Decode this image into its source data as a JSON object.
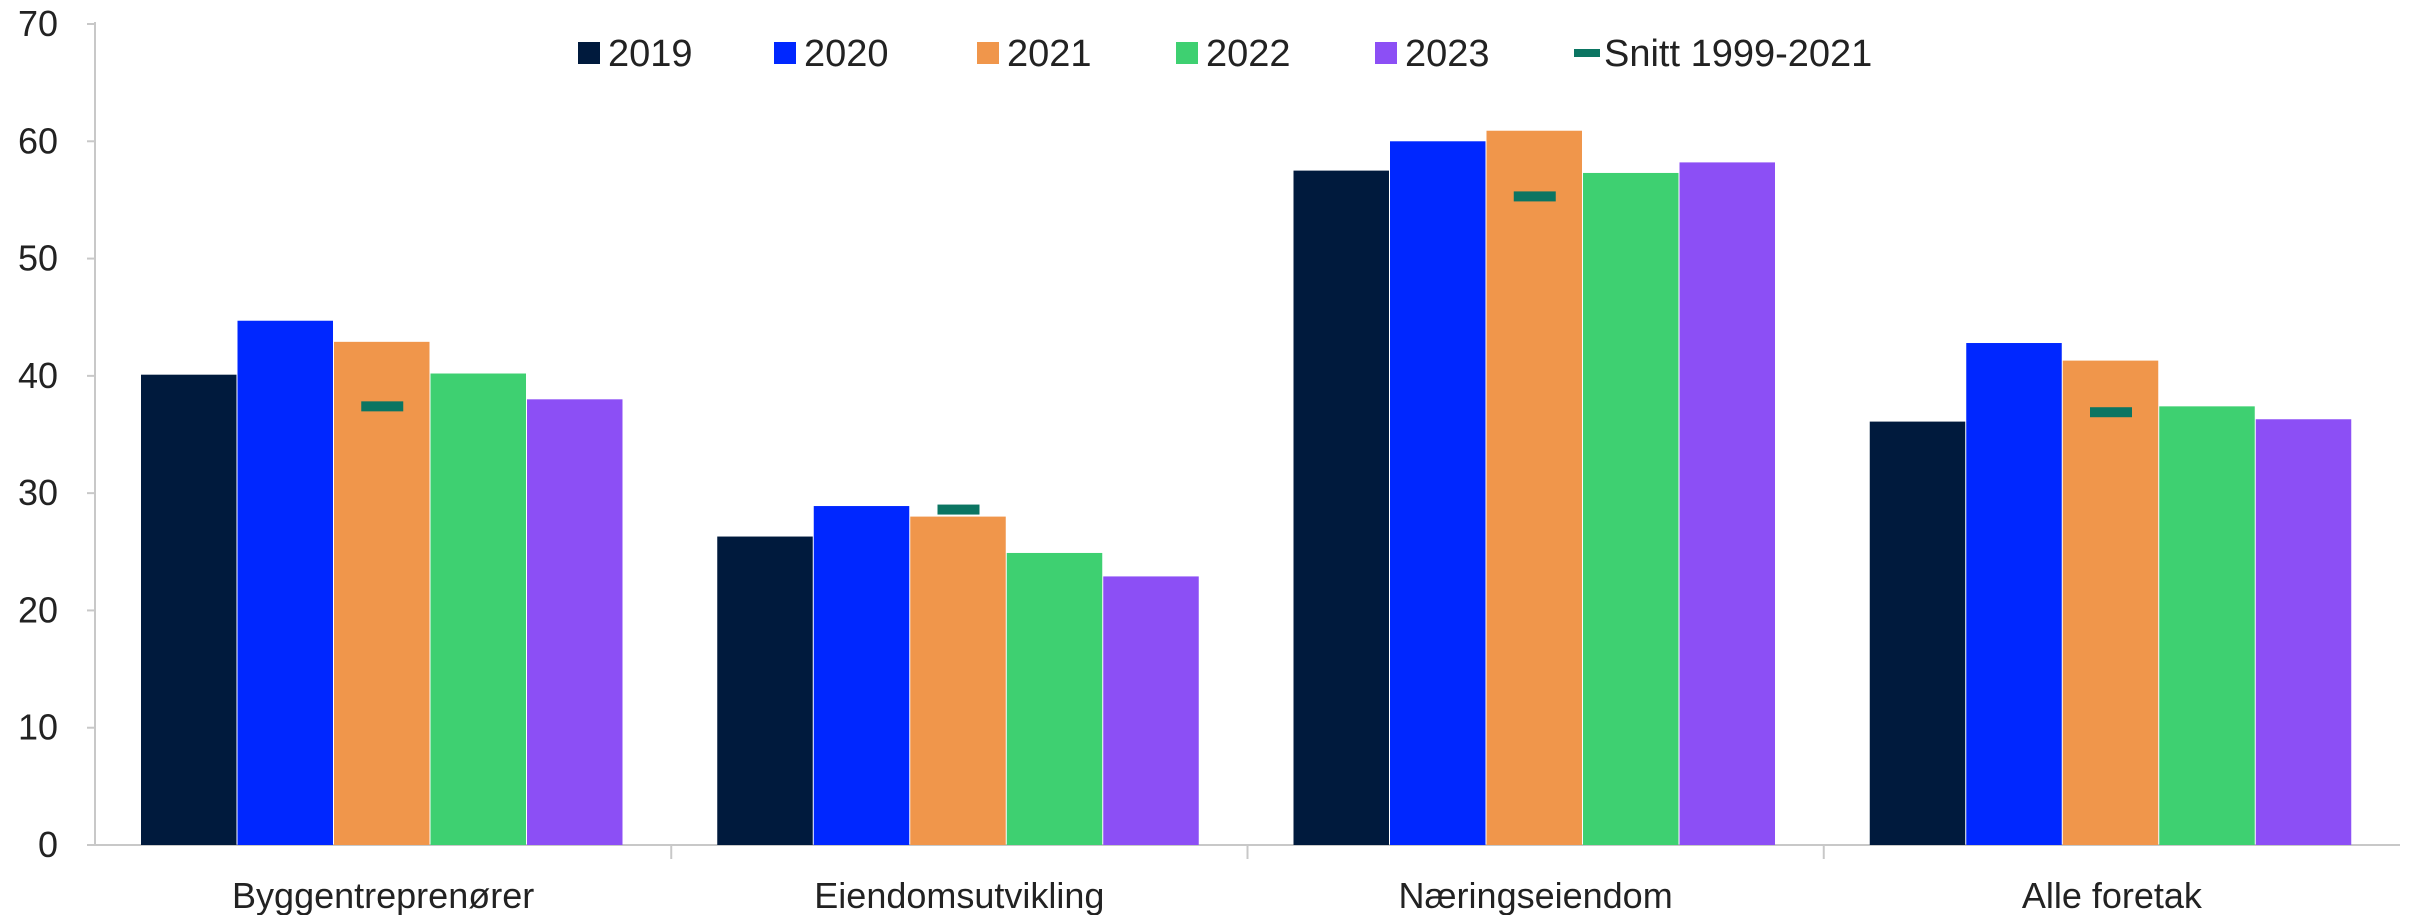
{
  "chart_data": {
    "type": "bar",
    "title": "",
    "xlabel": "",
    "ylabel": "",
    "ylim": [
      0,
      70
    ],
    "yticks": [
      0,
      10,
      20,
      30,
      40,
      50,
      60,
      70
    ],
    "grid": false,
    "legend_position": "top-center",
    "categories": [
      "Byggentreprenører",
      "Eiendomsutvikling",
      "Næringseiendom",
      "Alle foretak"
    ],
    "series": [
      {
        "name": "2019",
        "color": "#001a3d",
        "values": [
          40.1,
          26.3,
          57.5,
          36.1
        ]
      },
      {
        "name": "2020",
        "color": "#0027ff",
        "values": [
          44.7,
          28.9,
          60.0,
          42.8
        ]
      },
      {
        "name": "2021",
        "color": "#f0964b",
        "values": [
          42.9,
          28.0,
          60.9,
          41.3
        ]
      },
      {
        "name": "2022",
        "color": "#3ed071",
        "values": [
          40.2,
          24.9,
          57.3,
          37.4
        ]
      },
      {
        "name": "2023",
        "color": "#8c4ff5",
        "values": [
          38.0,
          22.9,
          58.2,
          36.3
        ]
      }
    ],
    "average": {
      "name": "Snitt 1999-2021",
      "color": "#0b7562",
      "values": [
        37.4,
        28.6,
        55.3,
        36.9
      ]
    }
  }
}
